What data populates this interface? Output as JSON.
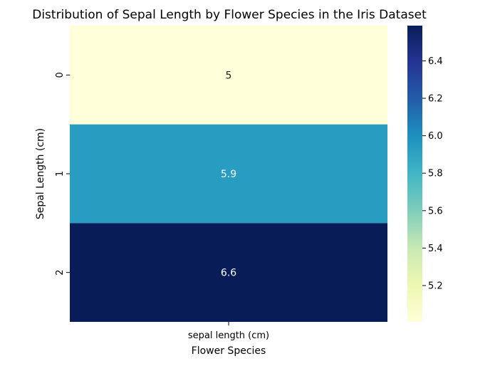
{
  "chart_data": {
    "type": "heatmap",
    "title": "Distribution of Sepal Length by Flower Species in the Iris Dataset",
    "xlabel": "Flower Species",
    "ylabel": "Sepal Length (cm)",
    "x_categories": [
      "sepal length (cm)"
    ],
    "y_categories": [
      "0",
      "1",
      "2"
    ],
    "values": [
      [
        5.006
      ],
      [
        5.936
      ],
      [
        6.588
      ]
    ],
    "annotations": [
      "5",
      "5.9",
      "6.6"
    ],
    "colormap": "YlGnBu",
    "colorbar": {
      "range": [
        5.006,
        6.588
      ],
      "ticks": [
        "5.2",
        "5.4",
        "5.6",
        "5.8",
        "6.0",
        "6.2",
        "6.4"
      ]
    }
  }
}
